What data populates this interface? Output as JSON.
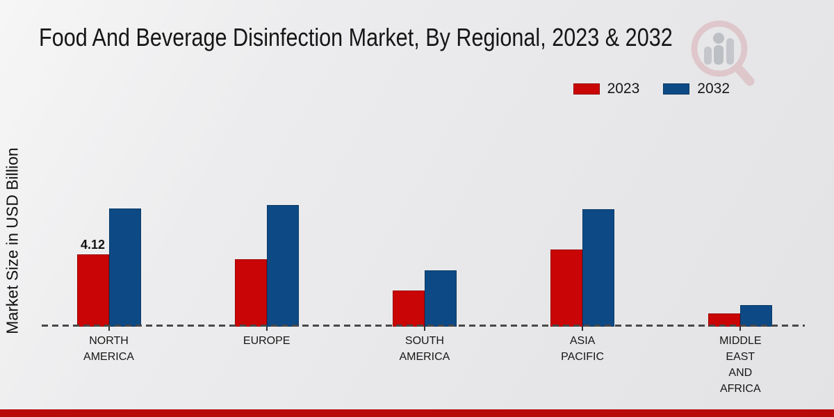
{
  "page": {
    "title": "Food And Beverage Disinfection Market, By Regional, 2023 & 2032",
    "footer_bar_color": "#b90a0a",
    "watermark_icon": "market-research-future-logo"
  },
  "chart_data": {
    "type": "bar",
    "title": "Food And Beverage Disinfection Market, By Regional, 2023 & 2032",
    "xlabel": "",
    "ylabel": "Market Size in USD Billion",
    "categories": [
      "NORTH AMERICA",
      "EUROPE",
      "SOUTH AMERICA",
      "ASIA PACIFIC",
      "MIDDLE EAST AND AFRICA"
    ],
    "series": [
      {
        "name": "2023",
        "color": "#c90505",
        "values": [
          4.12,
          3.85,
          2.06,
          4.4,
          0.75
        ]
      },
      {
        "name": "2032",
        "color": "#0d4a85",
        "values": [
          6.73,
          6.93,
          3.21,
          6.69,
          1.23
        ]
      }
    ],
    "data_labels": [
      {
        "series": "2023",
        "category": "NORTH AMERICA",
        "text": "4.12"
      }
    ],
    "legend_position": "top-right",
    "grid": false,
    "baseline_style": "dashed",
    "ylim": [
      0,
      8
    ]
  }
}
